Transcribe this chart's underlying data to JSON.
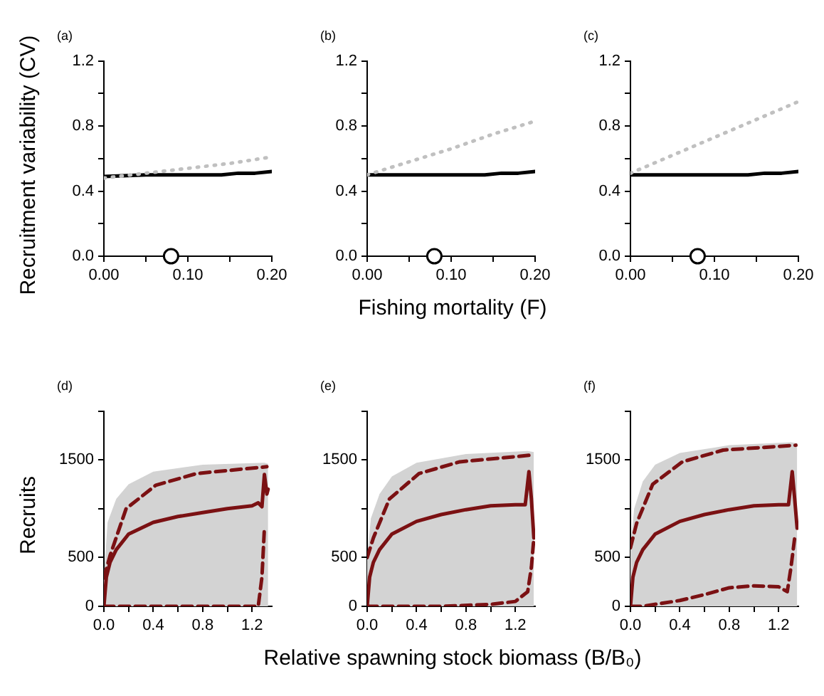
{
  "chart_data": [
    {
      "type": "line",
      "title": "(a)",
      "ylabel": "Recruitment variability (CV)",
      "x": [
        0,
        0.05,
        0.1,
        0.14,
        0.16,
        0.18,
        0.2
      ],
      "xlim": [
        0,
        0.2
      ],
      "ylim": [
        0,
        1.2
      ],
      "xticks": [
        {
          "value": 0,
          "label": "0.00"
        },
        {
          "value": 0.05,
          "label": null
        },
        {
          "value": 0.1,
          "label": "0.10"
        },
        {
          "value": 0.15,
          "label": null
        },
        {
          "value": 0.2,
          "label": "0.20"
        }
      ],
      "yticks": [
        {
          "value": 0,
          "label": "0.0"
        },
        {
          "value": 0.2,
          "label": null
        },
        {
          "value": 0.4,
          "label": "0.4"
        },
        {
          "value": 0.6,
          "label": null
        },
        {
          "value": 0.8,
          "label": "0.8"
        },
        {
          "value": 1.0,
          "label": null
        },
        {
          "value": 1.2,
          "label": "1.2"
        }
      ],
      "series": [
        {
          "color": "#c0c0c0",
          "line_style": "dotted",
          "x": [
            0,
            0.05,
            0.1,
            0.15,
            0.2
          ],
          "values": [
            0.48,
            0.51,
            0.54,
            0.57,
            0.61
          ]
        },
        {
          "color": "#000000",
          "line_style": "solid",
          "values": [
            0.49,
            0.5,
            0.5,
            0.5,
            0.51,
            0.51,
            0.52
          ]
        },
        {
          "type": "scatter",
          "marker": "circle",
          "color": "#000000",
          "x": [
            0.08
          ],
          "values": [
            0
          ]
        }
      ]
    },
    {
      "type": "line",
      "title": "(b)",
      "xlabel": "Fishing mortality (F)",
      "x": [
        0,
        0.05,
        0.1,
        0.14,
        0.16,
        0.18,
        0.2
      ],
      "xlim": [
        0,
        0.2
      ],
      "ylim": [
        0,
        1.2
      ],
      "xticks": [
        {
          "value": 0,
          "label": "0.00"
        },
        {
          "value": 0.05,
          "label": null
        },
        {
          "value": 0.1,
          "label": "0.10"
        },
        {
          "value": 0.15,
          "label": null
        },
        {
          "value": 0.2,
          "label": "0.20"
        }
      ],
      "yticks": [
        {
          "value": 0,
          "label": "0.0"
        },
        {
          "value": 0.2,
          "label": null
        },
        {
          "value": 0.4,
          "label": "0.4"
        },
        {
          "value": 0.6,
          "label": null
        },
        {
          "value": 0.8,
          "label": "0.8"
        },
        {
          "value": 1.0,
          "label": null
        },
        {
          "value": 1.2,
          "label": "1.2"
        }
      ],
      "series": [
        {
          "color": "#c0c0c0",
          "line_style": "dotted",
          "x": [
            0,
            0.05,
            0.1,
            0.15,
            0.2
          ],
          "values": [
            0.5,
            0.58,
            0.66,
            0.75,
            0.83
          ]
        },
        {
          "color": "#000000",
          "line_style": "solid",
          "values": [
            0.5,
            0.5,
            0.5,
            0.5,
            0.51,
            0.51,
            0.52
          ]
        },
        {
          "type": "scatter",
          "marker": "circle",
          "color": "#000000",
          "x": [
            0.08
          ],
          "values": [
            0
          ]
        }
      ]
    },
    {
      "type": "line",
      "title": "(c)",
      "x": [
        0,
        0.05,
        0.1,
        0.14,
        0.16,
        0.18,
        0.2
      ],
      "xlim": [
        0,
        0.2
      ],
      "ylim": [
        0,
        1.2
      ],
      "xticks": [
        {
          "value": 0,
          "label": "0.00"
        },
        {
          "value": 0.05,
          "label": null
        },
        {
          "value": 0.1,
          "label": "0.10"
        },
        {
          "value": 0.15,
          "label": null
        },
        {
          "value": 0.2,
          "label": "0.20"
        }
      ],
      "yticks": [
        {
          "value": 0,
          "label": "0.0"
        },
        {
          "value": 0.2,
          "label": null
        },
        {
          "value": 0.4,
          "label": "0.4"
        },
        {
          "value": 0.6,
          "label": null
        },
        {
          "value": 0.8,
          "label": "0.8"
        },
        {
          "value": 1.0,
          "label": null
        },
        {
          "value": 1.2,
          "label": "1.2"
        }
      ],
      "series": [
        {
          "color": "#c0c0c0",
          "line_style": "dotted",
          "x": [
            0,
            0.05,
            0.1,
            0.15,
            0.2
          ],
          "values": [
            0.51,
            0.62,
            0.73,
            0.84,
            0.95
          ]
        },
        {
          "color": "#000000",
          "line_style": "solid",
          "values": [
            0.5,
            0.5,
            0.5,
            0.5,
            0.51,
            0.51,
            0.52
          ]
        },
        {
          "type": "scatter",
          "marker": "circle",
          "color": "#000000",
          "x": [
            0.08
          ],
          "values": [
            0
          ]
        }
      ]
    },
    {
      "type": "line",
      "title": "(d)",
      "ylabel": "Recruits",
      "xlim": [
        0,
        1.36
      ],
      "ylim": [
        0,
        2000
      ],
      "xticks": [
        {
          "value": 0,
          "label": "0.0"
        },
        {
          "value": 0.2,
          "label": null
        },
        {
          "value": 0.4,
          "label": "0.4"
        },
        {
          "value": 0.6,
          "label": null
        },
        {
          "value": 0.8,
          "label": "0.8"
        },
        {
          "value": 1.0,
          "label": null
        },
        {
          "value": 1.2,
          "label": "1.2"
        }
      ],
      "yticks": [
        0,
        500,
        {
          "value": 1000,
          "label": null
        },
        1500,
        {
          "value": 2000,
          "label": null
        }
      ],
      "series": [
        {
          "type": "area",
          "color": "#d3d3d3",
          "x": [
            0,
            0.03,
            0.1,
            0.2,
            0.4,
            0.8,
            1.3,
            1.33
          ],
          "values": [
            300,
            860,
            1100,
            1250,
            1380,
            1450,
            1470,
            1460
          ]
        },
        {
          "color": "#7b1113",
          "line_style": "dashed",
          "x": [
            0,
            0.05,
            0.18,
            0.42,
            0.75,
            1.32
          ],
          "values": [
            290,
            520,
            1000,
            1240,
            1360,
            1430
          ]
        },
        {
          "color": "#7b1113",
          "line_style": "dashed",
          "x": [
            0,
            0.2,
            0.6,
            1.0,
            1.25,
            1.28,
            1.3
          ],
          "values": [
            0,
            0,
            0,
            0,
            0,
            300,
            800
          ]
        },
        {
          "color": "#7b1113",
          "line_style": "solid",
          "x": [
            0,
            0.02,
            0.05,
            0.1,
            0.2,
            0.4,
            0.6,
            0.8,
            1.0,
            1.2,
            1.25,
            1.28,
            1.3,
            1.32,
            1.33
          ],
          "values": [
            0,
            300,
            450,
            580,
            740,
            860,
            920,
            960,
            1000,
            1030,
            1060,
            1020,
            1350,
            1150,
            1200
          ]
        }
      ]
    },
    {
      "type": "line",
      "title": "(e)",
      "xlabel": "Relative spawning stock biomass (B/B₀)",
      "xlim": [
        0,
        1.36
      ],
      "ylim": [
        0,
        2000
      ],
      "xticks": [
        {
          "value": 0,
          "label": "0.0"
        },
        {
          "value": 0.2,
          "label": null
        },
        {
          "value": 0.4,
          "label": "0.4"
        },
        {
          "value": 0.6,
          "label": null
        },
        {
          "value": 0.8,
          "label": "0.8"
        },
        {
          "value": 1.0,
          "label": null
        },
        {
          "value": 1.2,
          "label": "1.2"
        }
      ],
      "yticks": [
        0,
        500,
        {
          "value": 1000,
          "label": null
        },
        1500,
        {
          "value": 2000,
          "label": null
        }
      ],
      "series": [
        {
          "type": "area",
          "color": "#d3d3d3",
          "x": [
            0,
            0.03,
            0.1,
            0.2,
            0.4,
            0.8,
            1.3,
            1.35
          ],
          "values": [
            500,
            900,
            1150,
            1330,
            1470,
            1560,
            1590,
            1580
          ]
        },
        {
          "color": "#7b1113",
          "line_style": "dashed",
          "x": [
            0,
            0.05,
            0.18,
            0.42,
            0.75,
            1.34
          ],
          "values": [
            500,
            700,
            1100,
            1360,
            1480,
            1550
          ]
        },
        {
          "color": "#7b1113",
          "line_style": "dashed",
          "x": [
            0,
            0.2,
            0.6,
            1.0,
            1.2,
            1.3,
            1.33,
            1.35
          ],
          "values": [
            0,
            0,
            0,
            20,
            50,
            150,
            400,
            700
          ]
        },
        {
          "color": "#7b1113",
          "line_style": "solid",
          "x": [
            0,
            0.02,
            0.05,
            0.1,
            0.2,
            0.4,
            0.6,
            0.8,
            1.0,
            1.2,
            1.28,
            1.31,
            1.33,
            1.35
          ],
          "values": [
            0,
            300,
            450,
            580,
            740,
            870,
            940,
            990,
            1030,
            1040,
            1040,
            1380,
            1100,
            700
          ]
        }
      ]
    },
    {
      "type": "line",
      "title": "(f)",
      "xlim": [
        0,
        1.36
      ],
      "ylim": [
        0,
        2000
      ],
      "xticks": [
        {
          "value": 0,
          "label": "0.0"
        },
        {
          "value": 0.2,
          "label": null
        },
        {
          "value": 0.4,
          "label": "0.4"
        },
        {
          "value": 0.6,
          "label": null
        },
        {
          "value": 0.8,
          "label": "0.8"
        },
        {
          "value": 1.0,
          "label": null
        },
        {
          "value": 1.2,
          "label": "1.2"
        }
      ],
      "yticks": [
        0,
        500,
        {
          "value": 1000,
          "label": null
        },
        1500,
        {
          "value": 2000,
          "label": null
        }
      ],
      "series": [
        {
          "type": "area",
          "color": "#d3d3d3",
          "x": [
            0,
            0.03,
            0.1,
            0.2,
            0.4,
            0.8,
            1.3,
            1.35
          ],
          "values": [
            600,
            1000,
            1280,
            1450,
            1570,
            1650,
            1680,
            1670
          ]
        },
        {
          "color": "#7b1113",
          "line_style": "dashed",
          "x": [
            0,
            0.05,
            0.18,
            0.42,
            0.75,
            1.34
          ],
          "values": [
            600,
            850,
            1250,
            1480,
            1600,
            1650
          ]
        },
        {
          "color": "#7b1113",
          "line_style": "dashed",
          "x": [
            0,
            0.1,
            0.4,
            0.6,
            0.8,
            1.0,
            1.2,
            1.27,
            1.3,
            1.33
          ],
          "values": [
            0,
            0,
            60,
            120,
            190,
            210,
            200,
            150,
            400,
            700
          ]
        },
        {
          "color": "#7b1113",
          "line_style": "solid",
          "x": [
            0,
            0.02,
            0.05,
            0.1,
            0.2,
            0.4,
            0.6,
            0.8,
            1.0,
            1.2,
            1.28,
            1.31,
            1.33,
            1.35
          ],
          "values": [
            0,
            300,
            450,
            580,
            740,
            870,
            940,
            990,
            1030,
            1040,
            1040,
            1380,
            1100,
            800
          ]
        }
      ]
    }
  ]
}
